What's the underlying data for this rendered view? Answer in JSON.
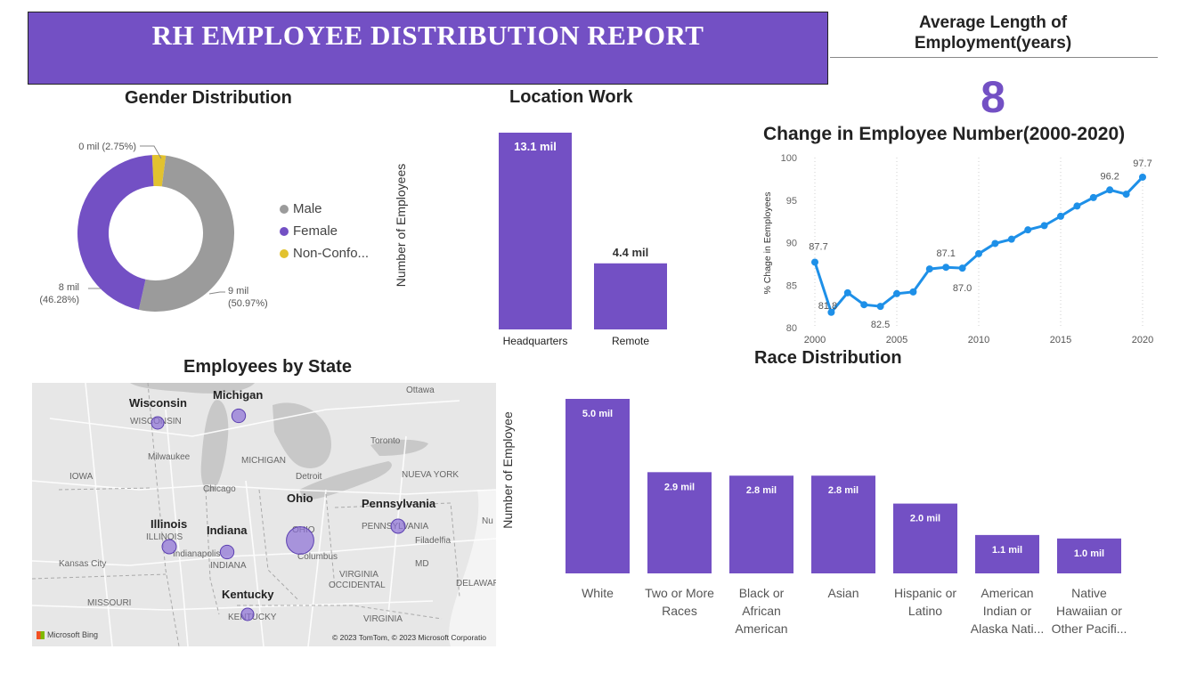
{
  "report": {
    "title": "RH EMPLOYEE DISTRIBUTION REPORT"
  },
  "avg_employment": {
    "title_line1": "Average Length of",
    "title_line2": "Employment(years)",
    "value": "8"
  },
  "colors": {
    "purple": "#7350c4",
    "gray": "#9b9b9b",
    "yellow": "#e2c22f",
    "line_blue": "#1e90e8"
  },
  "chart_data": [
    {
      "id": "gender",
      "type": "pie",
      "title": "Gender Distribution",
      "slices": [
        {
          "name": "Male",
          "value": 9,
          "label": "9 mil",
          "pct": "(50.97%)",
          "color": "#9b9b9b"
        },
        {
          "name": "Female",
          "value": 8,
          "label": "8 mil",
          "pct": "(46.28%)",
          "color": "#7350c4"
        },
        {
          "name": "Non-Confo...",
          "value": 0.49,
          "label": "0 mil (2.75%)",
          "pct": "",
          "color": "#e2c22f"
        }
      ]
    },
    {
      "id": "location",
      "type": "bar",
      "title": "Location Work",
      "ylabel": "Number of Employees",
      "categories": [
        "Headquarters",
        "Remote"
      ],
      "values": [
        13.1,
        4.4
      ],
      "value_labels": [
        "13.1 mil",
        "4.4 mil"
      ]
    },
    {
      "id": "change",
      "type": "line",
      "title": "Change in Employee Number(2000-2020)",
      "ylabel": "% Chage in Eemployees",
      "ylim": [
        80,
        100
      ],
      "yticks": [
        "80",
        "85",
        "90",
        "95",
        "100"
      ],
      "xticks": [
        "2000",
        "2005",
        "2010",
        "2015",
        "2020"
      ],
      "x": [
        2000,
        2001,
        2002,
        2003,
        2004,
        2005,
        2006,
        2007,
        2008,
        2009,
        2010,
        2011,
        2012,
        2013,
        2014,
        2015,
        2016,
        2017,
        2018,
        2019,
        2020
      ],
      "values": [
        87.7,
        81.8,
        84.1,
        82.7,
        82.5,
        84.0,
        84.2,
        86.9,
        87.1,
        87.0,
        88.7,
        89.9,
        90.4,
        91.5,
        92.0,
        93.1,
        94.3,
        95.3,
        96.2,
        95.7,
        97.7
      ],
      "annotations": [
        {
          "x": 2000,
          "label": "87.7"
        },
        {
          "x": 2001,
          "label": "81.8"
        },
        {
          "x": 2004,
          "label": "82.5"
        },
        {
          "x": 2008,
          "label": "87.1"
        },
        {
          "x": 2009,
          "label": "87.0"
        },
        {
          "x": 2018,
          "label": "96.2"
        },
        {
          "x": 2020,
          "label": "97.7"
        }
      ]
    },
    {
      "id": "race",
      "type": "bar",
      "title": "Race Distribution",
      "ylabel": "Number of Employee",
      "categories": [
        [
          "White"
        ],
        [
          "Two or More",
          "Races"
        ],
        [
          "Black or",
          "African",
          "American"
        ],
        [
          "Asian"
        ],
        [
          "Hispanic or",
          "Latino"
        ],
        [
          "American",
          "Indian or",
          "Alaska Nati..."
        ],
        [
          "Native",
          "Hawaiian or",
          "Other Pacifi..."
        ]
      ],
      "values": [
        5.0,
        2.9,
        2.8,
        2.8,
        2.0,
        1.1,
        1.0
      ],
      "value_labels": [
        "5.0 mil",
        "2.9 mil",
        "2.8 mil",
        "2.8 mil",
        "2.0 mil",
        "1.1 mil",
        "1.0 mil"
      ]
    }
  ],
  "map": {
    "title": "Employees by State",
    "states": [
      {
        "name": "Wisconsin",
        "size": 1
      },
      {
        "name": "Michigan",
        "size": 1.2
      },
      {
        "name": "Ohio",
        "size": 4
      },
      {
        "name": "Pennsylvania",
        "size": 1.3
      },
      {
        "name": "Illinois",
        "size": 1.3
      },
      {
        "name": "Indiana",
        "size": 1.2
      },
      {
        "name": "Kentucky",
        "size": 1
      }
    ],
    "base_labels": [
      "Ottawa",
      "WISCONSIN",
      "Toronto",
      "Milwaukee",
      "MICHIGAN",
      "Detroit",
      "NUEVA YORK",
      "IOWA",
      "Chicago",
      "OHIO",
      "PENNSYLVANIA",
      "ILLINOIS",
      "Indianapolis",
      "Filadelfia",
      "Columbus",
      "INDIANA",
      "Kansas City",
      "VIRGINIA",
      "MD",
      "OCCIDENTAL",
      "DELAWARE",
      "MISSOURI",
      "KENTUCKY",
      "VIRGINIA",
      "Nu"
    ],
    "attribution": "© 2023 TomTom, © 2023 Microsoft Corporatio",
    "bing": "Microsoft Bing"
  }
}
